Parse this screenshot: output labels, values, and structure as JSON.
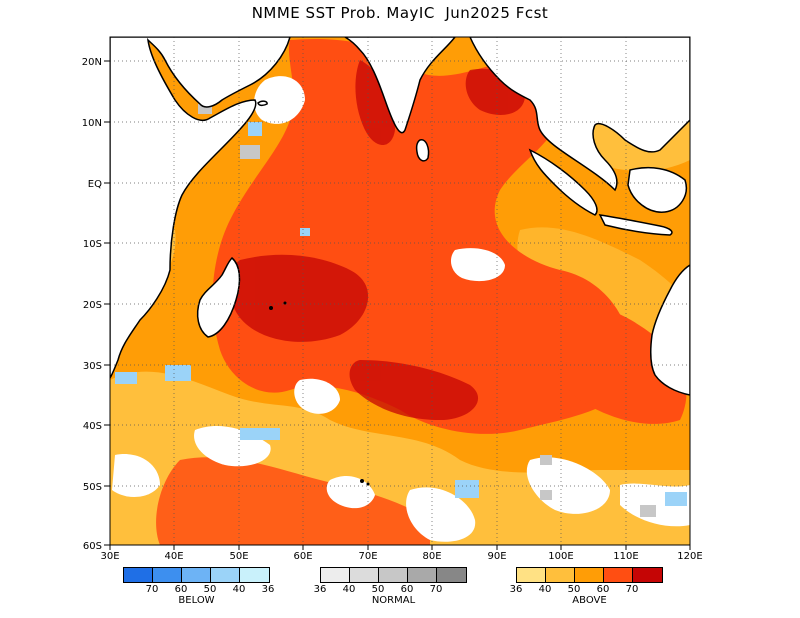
{
  "title": "NMME SST Prob. MayIC  Jun2025 Fcst",
  "map": {
    "region": "Indian Ocean",
    "lon_labels": [
      "30E",
      "40E",
      "50E",
      "60E",
      "70E",
      "80E",
      "90E",
      "100E",
      "110E",
      "120E"
    ],
    "lat_labels": [
      "20N",
      "10N",
      "EQ",
      "10S",
      "20S",
      "30S",
      "40S",
      "50S",
      "60S"
    ]
  },
  "legends": [
    {
      "id": "below",
      "name": "BELOW",
      "colors": [
        "#1f6fe6",
        "#3d8fef",
        "#6db3f5",
        "#9bd3f8",
        "#c9f1fb"
      ],
      "ticks": [
        "70",
        "60",
        "50",
        "40",
        "36"
      ]
    },
    {
      "id": "normal",
      "name": "NORMAL",
      "colors": [
        "#ededed",
        "#dcdcdc",
        "#c7c7c7",
        "#a9a9a9",
        "#878787"
      ],
      "ticks": [
        "36",
        "40",
        "50",
        "60",
        "70"
      ]
    },
    {
      "id": "above",
      "name": "ABOVE",
      "colors": [
        "#ffe184",
        "#ffbf3c",
        "#ff9d06",
        "#ff4e12",
        "#c50505"
      ],
      "ticks": [
        "36",
        "40",
        "50",
        "60",
        "70"
      ]
    }
  ]
}
